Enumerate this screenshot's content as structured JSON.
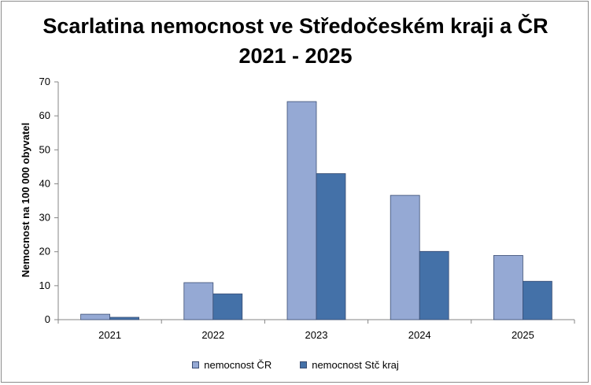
{
  "chart_data": {
    "type": "bar",
    "title_line1": "Scarlatina nemocnost ve Středočeském kraji a ČR",
    "title_line2": "2021 - 2025",
    "xlabel": "",
    "ylabel": "Nemocnost na 100 000 obyvatel",
    "ylim": [
      0,
      70
    ],
    "yticks": [
      0,
      10,
      20,
      30,
      40,
      50,
      60,
      70
    ],
    "categories": [
      "2021",
      "2022",
      "2023",
      "2024",
      "2025"
    ],
    "series": [
      {
        "name": "nemocnost ČR",
        "color": "#95a9d4",
        "values": [
          1.6,
          10.9,
          64.2,
          36.6,
          18.9
        ]
      },
      {
        "name": "nemocnost Stč kraj",
        "color": "#4471a8",
        "values": [
          0.7,
          7.6,
          43.0,
          20.1,
          11.3
        ]
      }
    ],
    "grid": false,
    "legend_position": "bottom"
  }
}
